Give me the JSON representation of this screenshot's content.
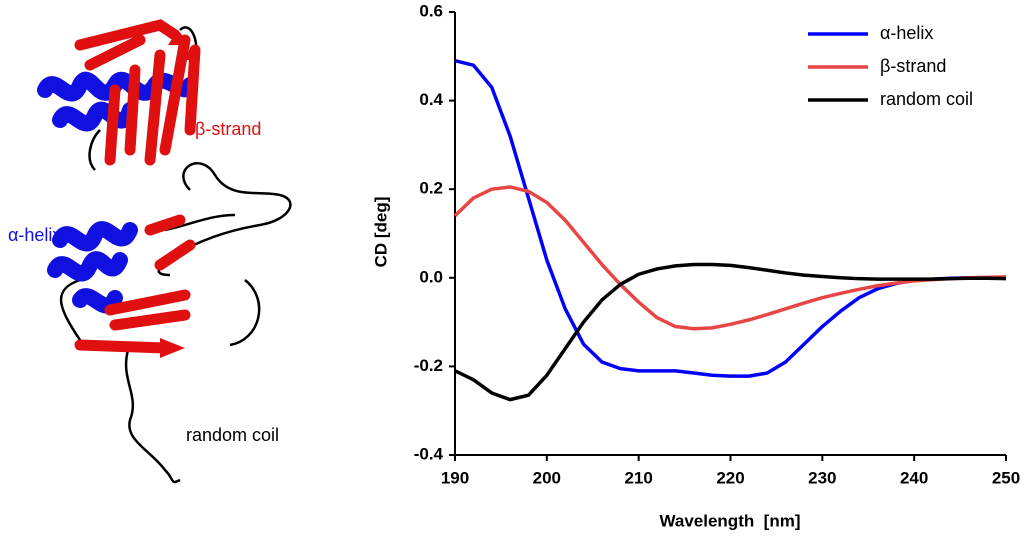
{
  "chart_data": {
    "type": "line",
    "annotations": [
      "β-strand",
      "α-helix",
      "random coil"
    ],
    "x_label": "Wavelength  [nm]",
    "y_label": "CD [deg]",
    "xlim": [
      190,
      250
    ],
    "xticks": [
      190,
      200,
      210,
      220,
      230,
      240,
      250
    ],
    "ylim": [
      -0.4,
      0.6
    ],
    "yticks": [
      -0.4,
      -0.2,
      {
        "value": 0,
        "label": "0.0"
      },
      0.2,
      0.4,
      0.6
    ],
    "grid": false,
    "legend": "upper right",
    "x": [
      190,
      192,
      194,
      196,
      198,
      200,
      202,
      204,
      206,
      208,
      210,
      212,
      214,
      216,
      218,
      220,
      222,
      224,
      226,
      228,
      230,
      232,
      234,
      236,
      238,
      240,
      242,
      244,
      246,
      248,
      250
    ],
    "series": [
      {
        "name": "α-helix",
        "color": "#0000ff",
        "values": [
          0.49,
          0.48,
          0.43,
          0.32,
          0.18,
          0.04,
          -0.07,
          -0.15,
          -0.19,
          -0.205,
          -0.21,
          -0.21,
          -0.21,
          -0.215,
          -0.22,
          -0.222,
          -0.222,
          -0.215,
          -0.19,
          -0.15,
          -0.11,
          -0.075,
          -0.045,
          -0.025,
          -0.013,
          -0.006,
          -0.003,
          -0.001,
          0,
          0,
          0
        ]
      },
      {
        "name": "β-strand",
        "color": "#e84545",
        "values": [
          0.14,
          0.18,
          0.2,
          0.205,
          0.195,
          0.17,
          0.13,
          0.08,
          0.03,
          -0.015,
          -0.055,
          -0.09,
          -0.11,
          -0.115,
          -0.113,
          -0.105,
          -0.095,
          -0.083,
          -0.07,
          -0.057,
          -0.045,
          -0.035,
          -0.026,
          -0.018,
          -0.012,
          -0.007,
          -0.004,
          -0.002,
          0,
          0.001,
          0.002
        ]
      },
      {
        "name": "random coil",
        "color": "#000000",
        "values": [
          -0.21,
          -0.23,
          -0.26,
          -0.275,
          -0.265,
          -0.22,
          -0.16,
          -0.1,
          -0.05,
          -0.015,
          0.008,
          0.02,
          0.027,
          0.03,
          0.03,
          0.028,
          0.023,
          0.017,
          0.011,
          0.006,
          0.003,
          0,
          -0.002,
          -0.003,
          -0.003,
          -0.003,
          -0.003,
          -0.002,
          -0.001,
          -0.001,
          -0.002
        ]
      }
    ]
  }
}
